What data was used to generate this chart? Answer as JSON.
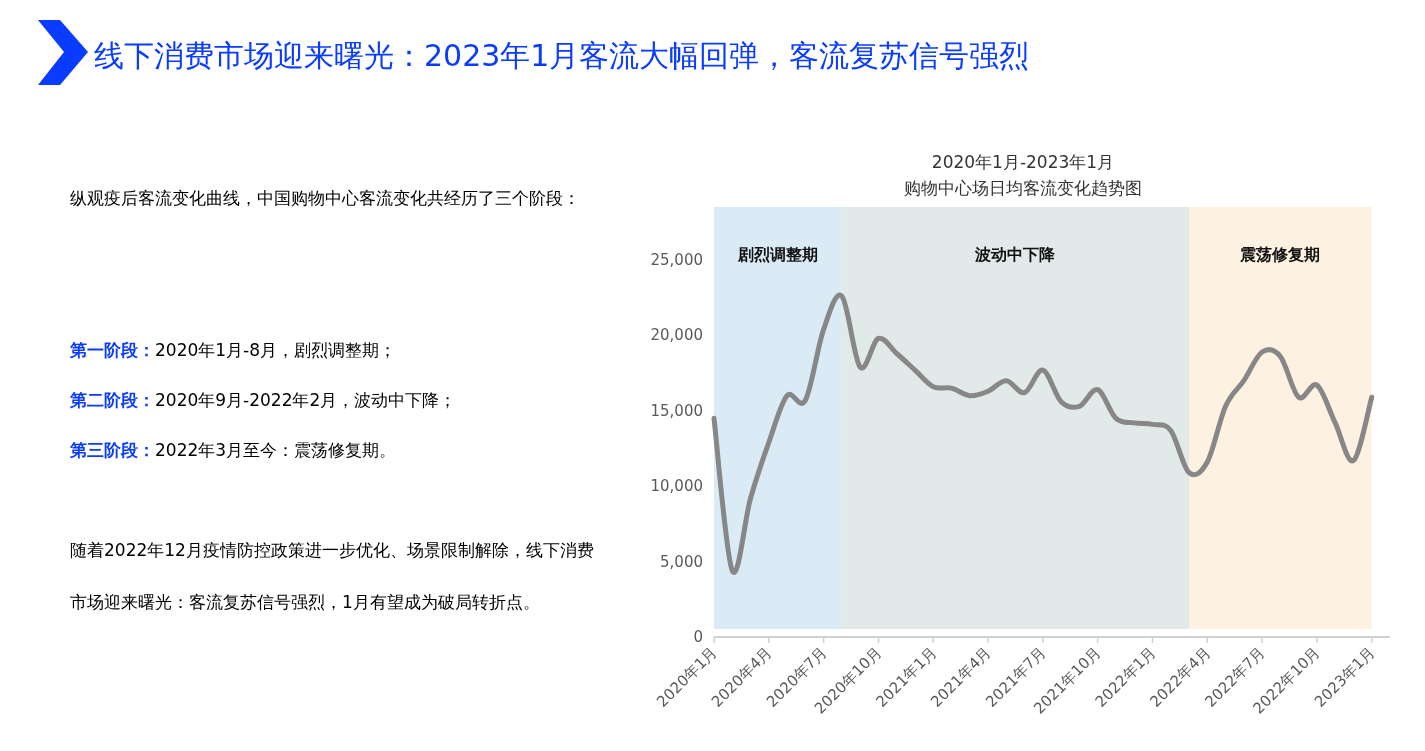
{
  "chart_data": {
    "type": "line",
    "title": "2020年1月-2023年1月",
    "subtitle": "购物中心场日均客流变化趋势图",
    "annotations": [
      "线下消费市场迎来曙光：2023年1月客流大幅回弹，客流复苏信号强烈",
      "纵观疫后客流变化曲线，中国购物中心客流变化共经历了三个阶段：",
      "第一阶段：",
      "2020年1月-8月，剧烈调整期；",
      "第二阶段：",
      "2020年9月-2022年2月，波动中下降；",
      "第三阶段：",
      "2022年3月至今：震荡修复期。",
      "随着2022年12月疫情防控政策进一步优化、场景限制解除，线下消费市场迎来曙光：客流复苏信号强烈，1月有望成为破局转折点。"
    ],
    "x": [
      "2020-01",
      "2020-02",
      "2020-03",
      "2020-04",
      "2020-05",
      "2020-06",
      "2020-07",
      "2020-08",
      "2020-09",
      "2020-10",
      "2020-11",
      "2020-12",
      "2021-01",
      "2021-02",
      "2021-03",
      "2021-04",
      "2021-05",
      "2021-06",
      "2021-07",
      "2021-08",
      "2021-09",
      "2021-10",
      "2021-11",
      "2021-12",
      "2022-01",
      "2022-02",
      "2022-03",
      "2022-04",
      "2022-05",
      "2022-06",
      "2022-07",
      "2022-08",
      "2022-09",
      "2022-10",
      "2022-11",
      "2022-12",
      "2023-01"
    ],
    "series": [
      {
        "color": "#878787",
        "values": [
          14500,
          4400,
          9200,
          12900,
          16000,
          15700,
          20400,
          22600,
          17900,
          19800,
          18800,
          17700,
          16600,
          16500,
          16000,
          16300,
          17000,
          16200,
          17700,
          15600,
          15300,
          16400,
          14500,
          14200,
          14100,
          13700,
          10900,
          11600,
          15300,
          17000,
          18900,
          18600,
          15900,
          16700,
          14200,
          11700,
          15900
        ]
      }
    ],
    "xlim": [
      "2020-01",
      "2023-02"
    ],
    "xticks": [
      {
        "value": "2020-01",
        "label": "2020年1月"
      },
      {
        "value": "2020-04",
        "label": "2020年4月"
      },
      {
        "value": "2020-07",
        "label": "2020年7月"
      },
      {
        "value": "2020-10",
        "label": "2020年10月"
      },
      {
        "value": "2021-01",
        "label": "2021年1月"
      },
      {
        "value": "2021-04",
        "label": "2021年4月"
      },
      {
        "value": "2021-07",
        "label": "2021年7月"
      },
      {
        "value": "2021-10",
        "label": "2021年10月"
      },
      {
        "value": "2022-01",
        "label": "2022年1月"
      },
      {
        "value": "2022-04",
        "label": "2022年4月"
      },
      {
        "value": "2022-07",
        "label": "2022年7月"
      },
      {
        "value": "2022-10",
        "label": "2022年10月"
      },
      {
        "value": "2023-01",
        "label": "2023年1月"
      }
    ],
    "ylim": [
      0,
      25000
    ],
    "yticks": [
      0,
      {
        "value": 5000,
        "label": "5,000"
      },
      {
        "value": 10000,
        "label": "10,000"
      },
      {
        "value": 15000,
        "label": "15,000"
      },
      {
        "value": 20000,
        "label": "20,000"
      },
      {
        "value": 25000,
        "label": "25,000"
      }
    ],
    "bands": [
      {
        "axis": "x",
        "from": "2020-01",
        "to": "2020-08",
        "label": "剧烈调整期",
        "color": "#daebf6"
      },
      {
        "axis": "x",
        "from": "2020-08",
        "to": "2022-03",
        "label": "波动中下降",
        "color": "#e1eae9"
      },
      {
        "axis": "x",
        "from": "2022-03",
        "to": "2023-01",
        "label": "震荡修复期",
        "color": "#fdf2e1"
      }
    ]
  }
}
